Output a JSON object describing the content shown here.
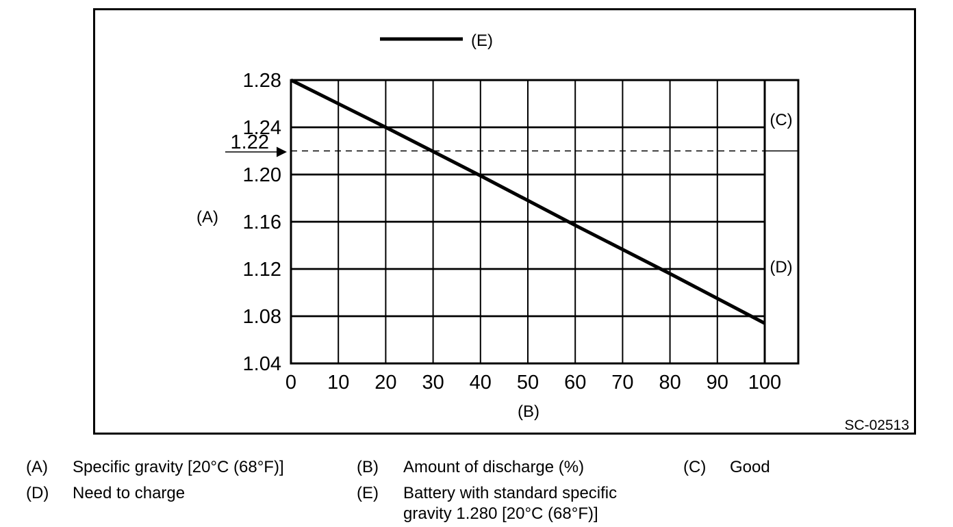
{
  "figure": {
    "code": "SC-02513"
  },
  "chart_data": {
    "type": "line",
    "title": "",
    "xlabel": "(B)",
    "ylabel": "(A)",
    "x_range": [
      0,
      100
    ],
    "y_range": [
      1.04,
      1.28
    ],
    "x_ticks": [
      0,
      10,
      20,
      30,
      40,
      50,
      60,
      70,
      80,
      90,
      100
    ],
    "y_ticks": [
      1.28,
      1.24,
      1.2,
      1.16,
      1.12,
      1.08,
      1.04
    ],
    "y_tick_labels": [
      "1.28",
      "1.24",
      "1.20",
      "1.16",
      "1.12",
      "1.08",
      "1.04"
    ],
    "grid": true,
    "legend_position": "top-center",
    "threshold": {
      "value": 1.22,
      "label": "1.22",
      "style": "dashed-with-arrow"
    },
    "series": [
      {
        "name": "(E)",
        "description": "Battery with standard specific gravity 1.280 [20°C (68°F)]",
        "x": [
          0,
          20,
          40,
          60,
          80,
          100
        ],
        "y": [
          1.28,
          1.24,
          1.199,
          1.157,
          1.116,
          1.074
        ]
      }
    ],
    "regions": [
      {
        "label": "(C)",
        "meaning": "Good",
        "y_from": 1.22,
        "y_to": 1.28
      },
      {
        "label": "(D)",
        "meaning": "Need to charge",
        "y_from": 1.04,
        "y_to": 1.22
      }
    ]
  },
  "legend_key": {
    "a": {
      "key": "(A)",
      "text": "Specific gravity [20°C (68°F)]"
    },
    "b": {
      "key": "(B)",
      "text": "Amount of discharge (%)"
    },
    "c": {
      "key": "(C)",
      "text": "Good"
    },
    "d": {
      "key": "(D)",
      "text": "Need to charge"
    },
    "e": {
      "key": "(E)",
      "line1": "Battery with standard specific",
      "line2": "gravity 1.280 [20°C (68°F)]"
    }
  }
}
